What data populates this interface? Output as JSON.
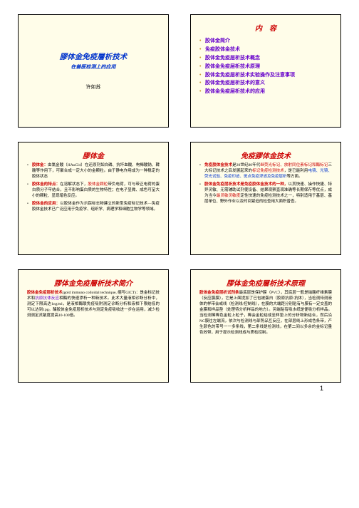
{
  "colors": {
    "slide_bg": "#fffde9",
    "page_bg": "#ffffff",
    "red": "#cc0000",
    "blue": "#0033cc",
    "purple": "#6600cc",
    "gold": "#cc9933"
  },
  "page_number": "1",
  "slides": {
    "s1": {
      "title": "膠体金免疫層析技术",
      "subtitle": "在兽医检测上的应用",
      "author": "许如苏"
    },
    "s2": {
      "title": "内　容",
      "items": [
        "胶体金简介",
        "免疫胶体金技术",
        "胶体金免疫层析技术概念",
        "胶体金免疫层析技术原理",
        "胶体金免疫层析技术实验操作及注意事项",
        "胶体金免疫层析技术的意义",
        "胶体金免疫层析技术的应用"
      ]
    },
    "s3": {
      "title": "膠体金",
      "b1_lead": "胶体金：",
      "b1": "由氯金酸（HAuCl4）在还原剂如白磷、抗坏血酸、枸橼酸钠、鞣酸等作用下，可聚合成一定大小的金颗粒。由于静电作用成为一种稳定的胶体状态",
      "b2_lead": "胶体金的特点：",
      "b2": "在溶解状态下，",
      "b2_hl": "胶体金颗粒",
      "b2_rest": "带负电荷，可与带正电荷的蛋白质分子牢结合，且不影响蛋白质的生物特性；在电子显微、成色可呈大小的颗粒、显现暗色反应。",
      "b3_lead": "胶体金的应用：",
      "b3": "以胶体金作为示踪标志物建立的新型免疫标记技术—免疫胶体金技术已广泛应用于免疫学、组织学、病理学和细胞生物学等领域。"
    },
    "s4": {
      "title": "免疫膠体金技术",
      "b1_lead": "免疫胶体金技术",
      "b1a": "是20世纪80年代",
      "b1_hl1": "继荧光标记、放射同位素标记和酶标记",
      "b1b": "三大标记技术之后发展起来的",
      "b1_hl2": "标记免疫检测技术",
      "b1c": "，是已能利用",
      "b1_hl3": "电镜、光镜、荧光试验、免疫印迹、斑点免疫渗滤及免疫层析",
      "b1d": "等方面。",
      "b2_lead": "胶体金免疫层析技术是免疫胶体金技术的一种，",
      "b2": "以其快速、操作快捷、特异灵敏、无需辅助试剂使设备、结果观察直观准确等长期保存等优点，成为当今",
      "b2_hl": "最灵敏灵敏度",
      "b2b": "定性快速的免疫检测技术之一，特别适用于基层、基层单位、野外作业以及时间紧迫的检查用大面积普查。"
    },
    "s5": {
      "title": "膠体金免疫層析技术简介",
      "lead": "胶体金免疫层析技术",
      "en": "(gold immuno colloidal technique, 缩写GICT)：",
      "body1": "是金标记技术和",
      "hl1": "抗原抗体反应",
      "body2": "相酶的快速渗析一种新技术。此术大量液相诊断分析中，测定下限高达1ng/ml，是液相酶联免疫吸附测定诊断分析和液相下限结低的可以达到1pg。酶胶体金免疫层析技术与测定免疫吸收进一步在运用，减少检测测定灵敏度提高10-100倍。"
    },
    "s6": {
      "title": "膠体金免疫層析技术原理",
      "lead": "胶体金免疫层析试剂条",
      "body": "最底层是保护膜（PVC），其底层一般是硝酸纤维素膜（反应膜膜），它是上面提加了已包被蛋白（胶原抗原/抗体），当检测待测液体的样带会或线（检测线/控制线），在膜的大端距分别贴有与膜有一定交盖的金膜和样品垫（处理待分析样品的地方）。另端贴有吸水纸是便吸分析样品。当检测稀稀色金粒上粒子，稀会金粒结成至样垫上的分析物新结合，然后沿NC膜往左端流，依次与检测线与部势品互反应，在部层线上形成色条带，产生颜色的带号一一多条线，第二条线是检测线，在第二间以多余的金标记量色效带，用于提示检测线成与质检控制。"
    }
  }
}
